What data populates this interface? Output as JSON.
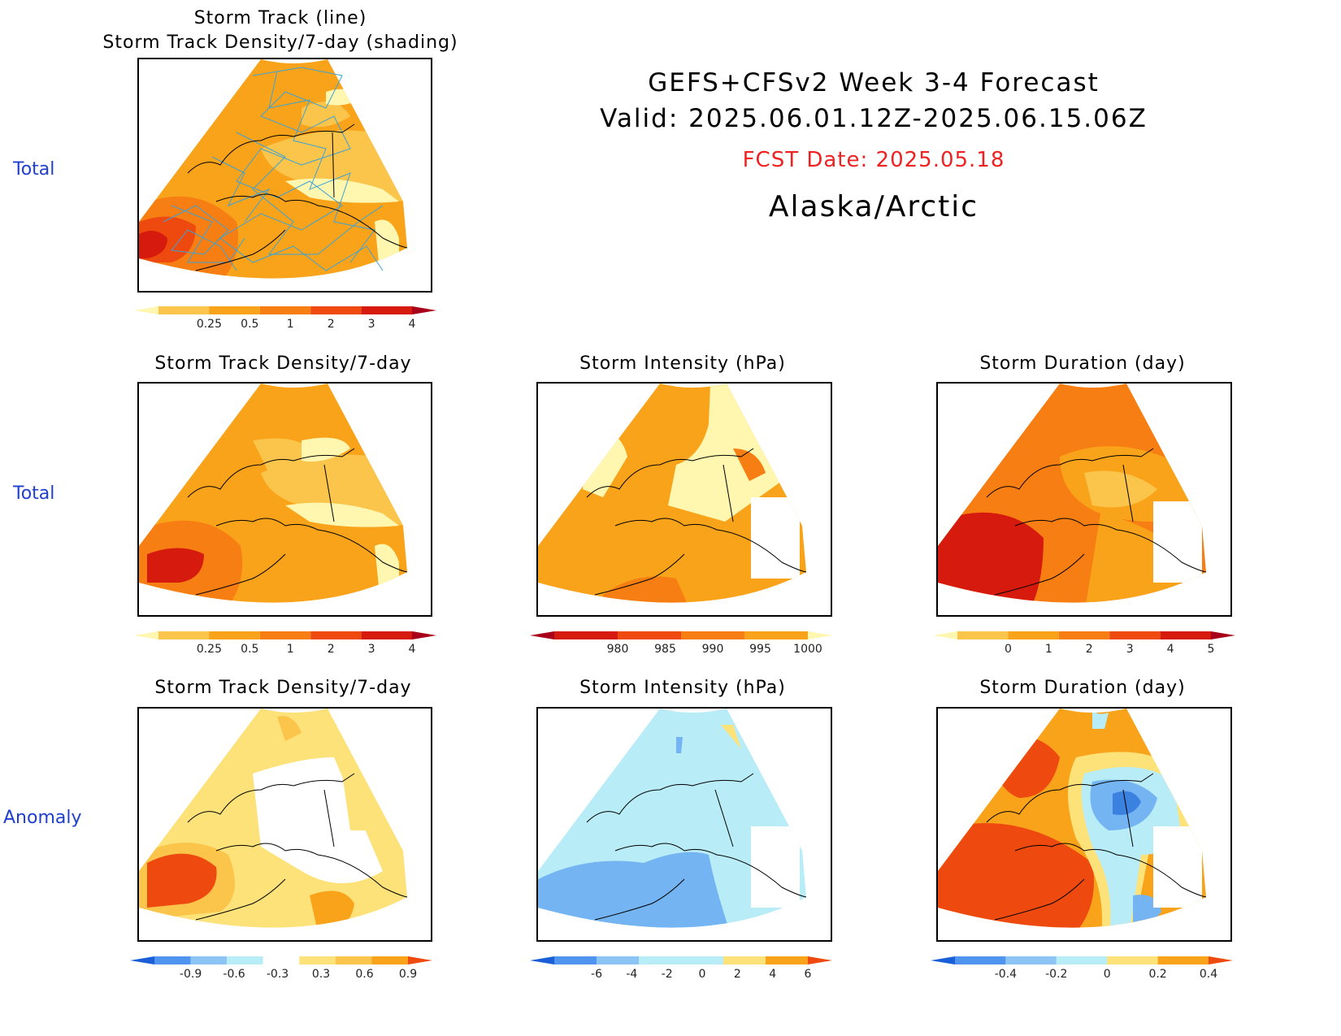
{
  "header": {
    "line1": "GEFS+CFSv2 Week 3-4 Forecast",
    "line2": "Valid: 2025.06.01.12Z-2025.06.15.06Z",
    "fcst_date": "FCST Date: 2025.05.18",
    "region": "Alaska/Arctic",
    "fcst_color": "#ee2222"
  },
  "row_labels": {
    "r1": "Total",
    "r2": "Total",
    "r3": "Anomaly"
  },
  "panels": {
    "top": {
      "title1": "Storm Track (line)",
      "title2": "Storm Track Density/7-day (shading)"
    },
    "r2c1": {
      "title": "Storm Track Density/7-day"
    },
    "r2c2": {
      "title": "Storm Intensity (hPa)"
    },
    "r2c3": {
      "title": "Storm Duration (day)"
    },
    "r3c1": {
      "title": "Storm Track Density/7-day"
    },
    "r3c2": {
      "title": "Storm Intensity (hPa)"
    },
    "r3c3": {
      "title": "Storm Duration (day)"
    }
  },
  "colorbars": {
    "density_total": {
      "labels": [
        "0.25",
        "0.5",
        "1",
        "2",
        "3",
        "4"
      ],
      "colors": [
        "#fff7b0",
        "#fbc44a",
        "#f9a31a",
        "#f77e12",
        "#ee4a10",
        "#d61b0e",
        "#a8001a"
      ]
    },
    "intensity_total": {
      "labels": [
        "980",
        "985",
        "990",
        "995",
        "1000"
      ],
      "colors": [
        "#a8001a",
        "#d61b0e",
        "#ee4a10",
        "#f77e12",
        "#f9a31a",
        "#fff7b0"
      ]
    },
    "duration_total": {
      "labels": [
        "0",
        "1",
        "2",
        "3",
        "4",
        "5"
      ],
      "colors": [
        "#fff7b0",
        "#fbc44a",
        "#f9a31a",
        "#f77e12",
        "#ee4a10",
        "#d61b0e",
        "#a8001a"
      ]
    },
    "density_anom": {
      "labels": [
        "-0.9",
        "-0.6",
        "-0.3",
        "0.3",
        "0.6",
        "0.9"
      ],
      "colors": [
        "#1a5fd8",
        "#4f94ee",
        "#8cc4f5",
        "#b8ecf7",
        "#ffffff",
        "#fde27a",
        "#fbc44a",
        "#f9a31a",
        "#ee4a10"
      ]
    },
    "intensity_anom": {
      "labels": [
        "-6",
        "-4",
        "-2",
        "0",
        "2",
        "4",
        "6"
      ],
      "colors": [
        "#1a5fd8",
        "#4f94ee",
        "#8cc4f5",
        "#b8ecf7",
        "#b8ecf7",
        "#fde27a",
        "#f9a31a",
        "#ee4a10"
      ]
    },
    "duration_anom": {
      "labels": [
        "-0.4",
        "-0.2",
        "0",
        "0.2",
        "0.4"
      ],
      "colors": [
        "#1a5fd8",
        "#4f94ee",
        "#8cc4f5",
        "#b8ecf7",
        "#fde27a",
        "#f9a31a",
        "#ee4a10"
      ]
    }
  },
  "map_colors": {
    "pale": "#fff7b0",
    "light": "#fbc44a",
    "mid": "#f9a31a",
    "dark": "#f77e12",
    "red": "#ee4a10",
    "deep": "#d61b0e",
    "track": "#3aa3d6",
    "cyan": "#b8ecf7",
    "blue": "#74b4f2",
    "bluedk": "#3b82e0",
    "yellow": "#fde27a"
  }
}
